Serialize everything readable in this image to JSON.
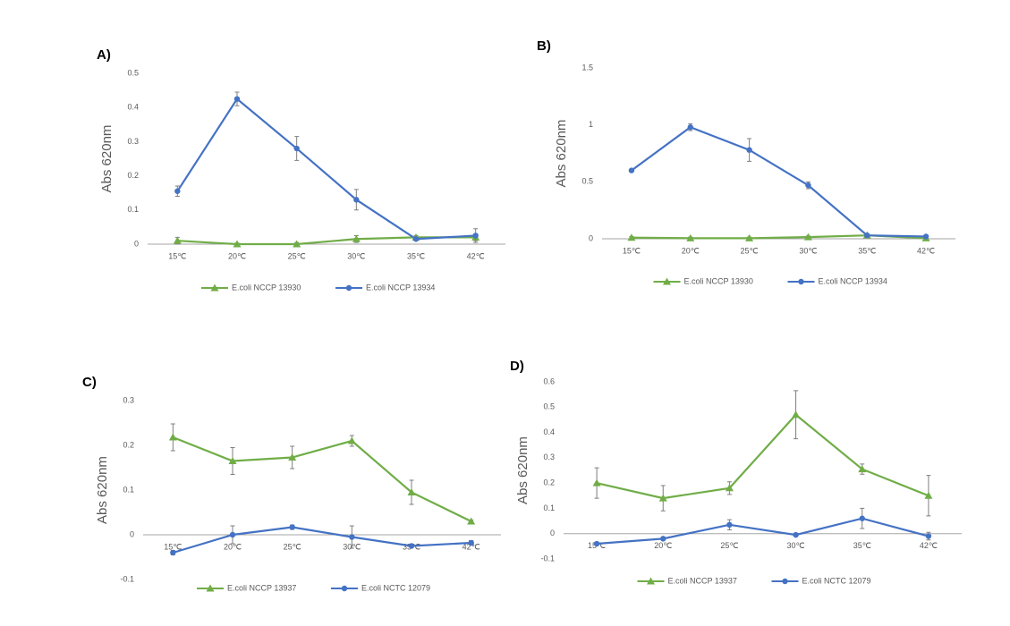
{
  "chart_data": [
    {
      "type": "line",
      "title": "A)",
      "y_label": "Abs 620nm",
      "categories": [
        "15℃",
        "20℃",
        "25℃",
        "30℃",
        "35℃",
        "42℃"
      ],
      "ylim": [
        0,
        0.5
      ],
      "yticks": [
        0,
        0.1,
        0.2,
        0.3,
        0.4,
        0.5
      ],
      "series": [
        {
          "name": "E.coli NCCP 13930",
          "color": "#70ad47",
          "marker": "triangle",
          "values": [
            0.01,
            0.0,
            0.0,
            0.015,
            0.02,
            0.02
          ],
          "errors": [
            0.01,
            0.003,
            0.005,
            0.01,
            0.005,
            0.01
          ]
        },
        {
          "name": "E.coli NCCP 13934",
          "color": "#4472c4",
          "marker": "circle",
          "values": [
            0.155,
            0.425,
            0.28,
            0.13,
            0.015,
            0.025
          ],
          "errors": [
            0.015,
            0.02,
            0.035,
            0.03,
            0.005,
            0.02
          ]
        }
      ]
    },
    {
      "type": "line",
      "title": "B)",
      "y_label": "Abs 620nm",
      "categories": [
        "15℃",
        "20℃",
        "25℃",
        "30℃",
        "35℃",
        "42℃"
      ],
      "ylim": [
        0,
        1.5
      ],
      "yticks": [
        0,
        0.5,
        1,
        1.5
      ],
      "series": [
        {
          "name": "E.coli NCCP 13930",
          "color": "#70ad47",
          "marker": "triangle",
          "values": [
            0.01,
            0.005,
            0.005,
            0.015,
            0.03,
            0.005
          ],
          "errors": [
            0.01,
            0.01,
            0.01,
            0.01,
            0.01,
            0.01
          ]
        },
        {
          "name": "E.coli NCCP 13934",
          "color": "#4472c4",
          "marker": "circle",
          "values": [
            0.6,
            0.98,
            0.78,
            0.47,
            0.03,
            0.02
          ],
          "errors": [
            0.01,
            0.03,
            0.1,
            0.03,
            0.01,
            0.01
          ]
        }
      ]
    },
    {
      "type": "line",
      "title": "C)",
      "y_label": "Abs 620nm",
      "categories": [
        "15℃",
        "20℃",
        "25℃",
        "30℃",
        "35℃",
        "42℃"
      ],
      "ylim": [
        -0.1,
        0.3
      ],
      "yticks": [
        -0.1,
        0,
        0.1,
        0.2,
        0.3
      ],
      "series": [
        {
          "name": "E.coli NCCP 13937",
          "color": "#70ad47",
          "marker": "triangle",
          "values": [
            0.218,
            0.165,
            0.173,
            0.21,
            0.095,
            0.03
          ],
          "errors": [
            0.03,
            0.03,
            0.025,
            0.012,
            0.027,
            0.003
          ]
        },
        {
          "name": "E.coli NCTC 12079",
          "color": "#4472c4",
          "marker": "circle",
          "values": [
            -0.04,
            0.0,
            0.017,
            -0.005,
            -0.025,
            -0.018
          ],
          "errors": [
            0.005,
            0.02,
            0.005,
            0.025,
            0.003,
            0.005
          ]
        }
      ]
    },
    {
      "type": "line",
      "title": "D)",
      "y_label": "Abs 620nm",
      "categories": [
        "15℃",
        "20℃",
        "25℃",
        "30℃",
        "35℃",
        "42℃"
      ],
      "ylim": [
        -0.1,
        0.6
      ],
      "yticks": [
        -0.1,
        0,
        0.1,
        0.2,
        0.3,
        0.4,
        0.5,
        0.6
      ],
      "series": [
        {
          "name": "E.coli NCCP 13937",
          "color": "#70ad47",
          "marker": "triangle",
          "values": [
            0.2,
            0.14,
            0.18,
            0.47,
            0.255,
            0.15
          ],
          "errors": [
            0.06,
            0.05,
            0.025,
            0.095,
            0.02,
            0.08
          ]
        },
        {
          "name": "E.coli NCTC 12079",
          "color": "#4472c4",
          "marker": "circle",
          "values": [
            -0.04,
            -0.02,
            0.035,
            -0.005,
            0.06,
            -0.01
          ],
          "errors": [
            0.005,
            0.005,
            0.02,
            0.005,
            0.04,
            0.015
          ]
        }
      ]
    }
  ]
}
